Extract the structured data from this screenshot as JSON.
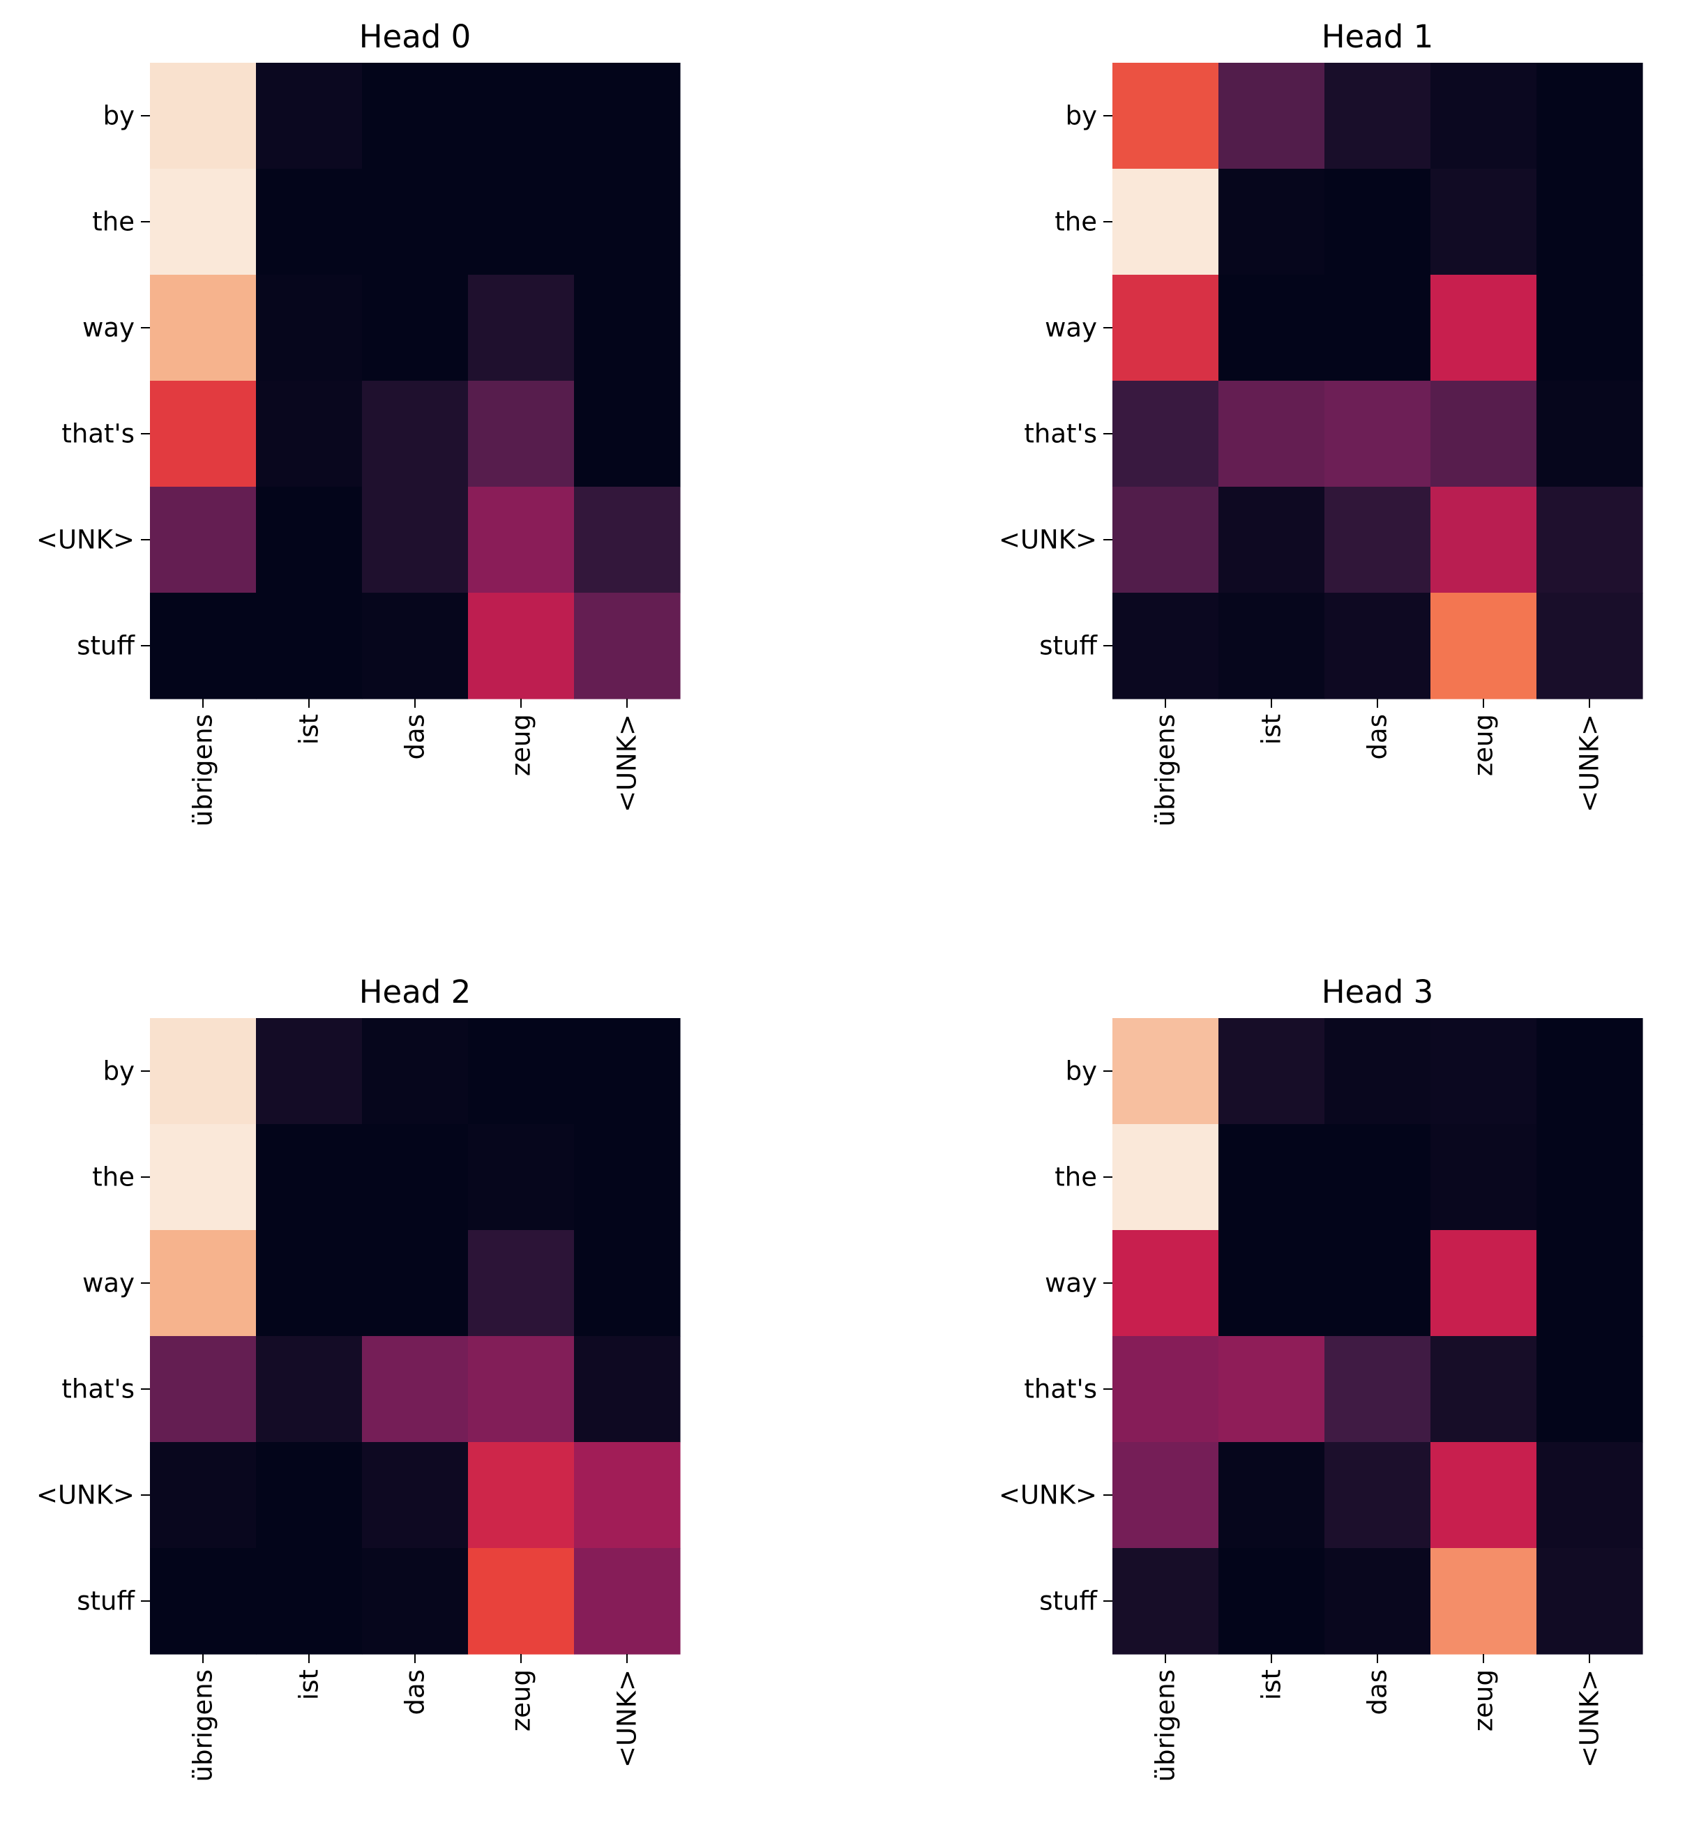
{
  "chart_data": [
    {
      "type": "heatmap",
      "title": "Head 0",
      "x_categories": [
        "übrigens",
        "ist",
        "das",
        "zeug",
        "<UNK>"
      ],
      "y_categories": [
        "by",
        "the",
        "way",
        "that's",
        "<UNK>",
        "stuff"
      ],
      "values": [
        [
          0.93,
          0.03,
          0.0,
          0.0,
          0.0
        ],
        [
          0.98,
          0.0,
          0.0,
          0.0,
          0.0
        ],
        [
          0.8,
          0.01,
          0.0,
          0.1,
          0.0
        ],
        [
          0.58,
          0.02,
          0.1,
          0.25,
          0.0
        ],
        [
          0.28,
          0.0,
          0.1,
          0.37,
          0.16
        ],
        [
          0.0,
          0.0,
          0.01,
          0.48,
          0.28
        ]
      ],
      "grid": false,
      "legend": "none"
    },
    {
      "type": "heatmap",
      "title": "Head 1",
      "x_categories": [
        "übrigens",
        "ist",
        "das",
        "zeug",
        "<UNK>"
      ],
      "y_categories": [
        "by",
        "the",
        "way",
        "that's",
        "<UNK>",
        "stuff"
      ],
      "values": [
        [
          0.63,
          0.24,
          0.08,
          0.03,
          0.0
        ],
        [
          0.98,
          0.01,
          0.0,
          0.05,
          0.0
        ],
        [
          0.55,
          0.0,
          0.0,
          0.5,
          0.0
        ],
        [
          0.18,
          0.28,
          0.3,
          0.25,
          0.01
        ],
        [
          0.24,
          0.04,
          0.15,
          0.47,
          0.1
        ],
        [
          0.03,
          0.01,
          0.04,
          0.7,
          0.08
        ]
      ],
      "grid": false,
      "legend": "none"
    },
    {
      "type": "heatmap",
      "title": "Head 2",
      "x_categories": [
        "übrigens",
        "ist",
        "das",
        "zeug",
        "<UNK>"
      ],
      "y_categories": [
        "by",
        "the",
        "way",
        "that's",
        "<UNK>",
        "stuff"
      ],
      "values": [
        [
          0.93,
          0.06,
          0.01,
          0.0,
          0.0
        ],
        [
          0.98,
          0.0,
          0.0,
          0.01,
          0.0
        ],
        [
          0.8,
          0.0,
          0.0,
          0.14,
          0.0
        ],
        [
          0.28,
          0.06,
          0.32,
          0.35,
          0.04
        ],
        [
          0.02,
          0.0,
          0.04,
          0.52,
          0.42
        ],
        [
          0.0,
          0.0,
          0.01,
          0.6,
          0.36
        ]
      ],
      "grid": false,
      "legend": "none"
    },
    {
      "type": "heatmap",
      "title": "Head 3",
      "x_categories": [
        "übrigens",
        "ist",
        "das",
        "zeug",
        "<UNK>"
      ],
      "y_categories": [
        "by",
        "the",
        "way",
        "that's",
        "<UNK>",
        "stuff"
      ],
      "values": [
        [
          0.83,
          0.07,
          0.02,
          0.03,
          0.0
        ],
        [
          0.98,
          0.0,
          0.0,
          0.02,
          0.0
        ],
        [
          0.5,
          0.0,
          0.0,
          0.5,
          0.0
        ],
        [
          0.36,
          0.38,
          0.2,
          0.07,
          0.0
        ],
        [
          0.32,
          0.01,
          0.09,
          0.5,
          0.04
        ],
        [
          0.07,
          0.0,
          0.02,
          0.74,
          0.05
        ]
      ],
      "grid": false,
      "legend": "none"
    }
  ]
}
